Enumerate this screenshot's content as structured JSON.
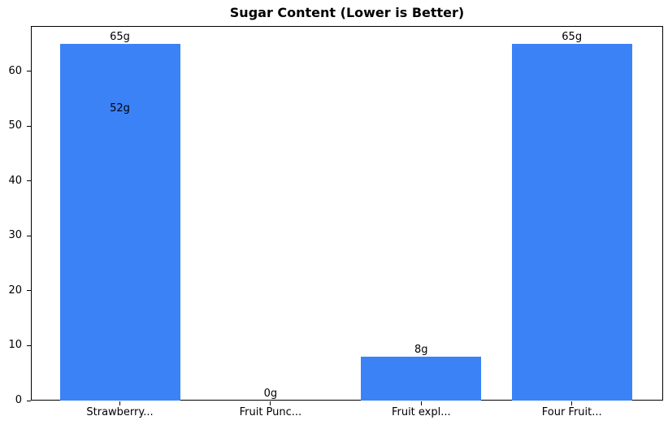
{
  "chart_data": {
    "type": "bar",
    "title": "Sugar Content (Lower is Better)",
    "categories": [
      "Strawberry...",
      "Fruit Punc...",
      "Fruit expl...",
      "Four Fruit..."
    ],
    "values": [
      65,
      0,
      8,
      65
    ],
    "bar_labels": [
      "65g",
      "0g",
      "8g",
      "65g"
    ],
    "overlay_labels": [
      {
        "category_index": 0,
        "value": 52,
        "label": "52g"
      }
    ],
    "xlabel": "",
    "ylabel": "",
    "yticks": [
      0,
      10,
      20,
      30,
      40,
      50,
      60
    ],
    "ylim": [
      0,
      68.25
    ],
    "grid": false,
    "legend": "none",
    "bar_color": "#3b82f6",
    "axis_color": "#000000",
    "text_color": "#000000",
    "background_color": "#ffffff"
  }
}
